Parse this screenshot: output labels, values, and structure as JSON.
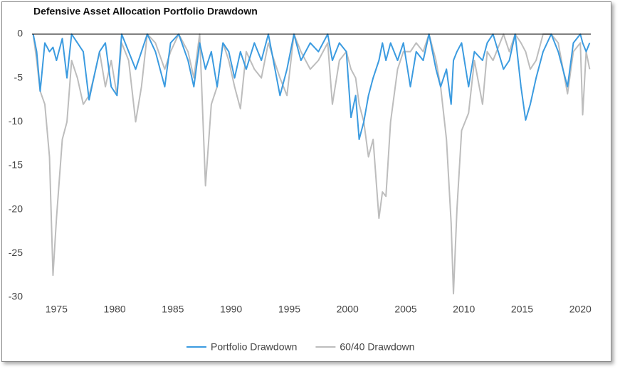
{
  "chart_data": {
    "type": "line",
    "title": "Defensive Asset Allocation Portfolio Drawdown",
    "x": [
      1973.0,
      1973.3,
      1973.6,
      1974.0,
      1974.4,
      1974.7,
      1975.0,
      1975.5,
      1975.9,
      1976.3,
      1976.8,
      1977.3,
      1977.8,
      1978.2,
      1978.7,
      1979.2,
      1979.7,
      1980.2,
      1980.6,
      1981.2,
      1981.8,
      1982.3,
      1982.8,
      1983.5,
      1984.3,
      1984.8,
      1985.5,
      1986.3,
      1986.8,
      1987.3,
      1987.8,
      1988.3,
      1988.8,
      1989.3,
      1989.8,
      1990.3,
      1990.8,
      1991.3,
      1992.0,
      1992.6,
      1993.2,
      1994.2,
      1994.8,
      1995.4,
      1996.0,
      1996.8,
      1997.5,
      1998.3,
      1998.7,
      1999.3,
      1999.9,
      2000.3,
      2000.7,
      2001.0,
      2001.4,
      2001.8,
      2002.2,
      2002.7,
      2003.0,
      2003.3,
      2003.7,
      2004.3,
      2004.8,
      2005.4,
      2005.9,
      2006.5,
      2007.0,
      2007.6,
      2008.0,
      2008.5,
      2008.9,
      2009.1,
      2009.4,
      2009.8,
      2010.4,
      2010.9,
      2011.6,
      2012.0,
      2012.5,
      2013.4,
      2013.9,
      2014.4,
      2014.9,
      2015.3,
      2015.7,
      2016.2,
      2016.8,
      2017.5,
      2018.1,
      2018.9,
      2019.4,
      2020.0,
      2020.2,
      2020.5,
      2020.8
    ],
    "series": [
      {
        "name": "Portfolio Drawdown",
        "color": "#3b9be0",
        "values": [
          0,
          -2,
          -6.5,
          -1,
          -2,
          -1.5,
          -3,
          -0.5,
          -5,
          0,
          -1,
          -2,
          -7.5,
          -5,
          -2,
          -1,
          -6,
          -7,
          0,
          -2,
          -4,
          -2,
          0,
          -2,
          -6,
          -1,
          0,
          -3,
          -6,
          -1,
          -4,
          -2,
          -6,
          -1,
          -2,
          -5,
          -2,
          -4,
          -1,
          -3,
          0,
          -7,
          -4,
          0,
          -3,
          -1,
          -2,
          0,
          -3,
          -1,
          -2,
          -9.5,
          -7,
          -12,
          -10,
          -7,
          -5,
          -3,
          -1,
          -3,
          -1,
          -3,
          -1,
          -6,
          -2,
          -3,
          0,
          -4,
          -6,
          -4,
          -8,
          -3,
          -2,
          -1,
          -6,
          -2,
          -3,
          -1,
          0,
          -4,
          -3,
          0,
          -6,
          -9.8,
          -8,
          -5,
          -2,
          0,
          -2,
          -6,
          -1,
          0,
          -1,
          -2,
          -1
        ]
      },
      {
        "name": "60/40 Drawdown",
        "color": "#bdbdbd",
        "values": [
          0,
          -3,
          -6.5,
          -8,
          -14,
          -27.5,
          -21,
          -12,
          -10,
          -3,
          -5,
          -8,
          -7,
          -5,
          -2,
          -6,
          -3,
          -7,
          -1,
          -3,
          -10,
          -6,
          0,
          -1,
          -4,
          -2,
          0,
          -2,
          -5,
          0,
          -17.3,
          -8,
          -6,
          -1,
          -3,
          -6,
          -8.5,
          -2,
          -4,
          -5,
          -1,
          -5,
          -7,
          0,
          -2,
          -4,
          -3,
          -1,
          -8,
          -3,
          -2,
          -4,
          -5,
          -8,
          -10,
          -14,
          -12,
          -21,
          -18,
          -18.5,
          -10,
          -4,
          -2,
          -2,
          -1,
          -2,
          0,
          -3,
          -6,
          -12,
          -21.5,
          -29.6,
          -20,
          -11,
          -9,
          -3,
          -8,
          -2,
          -3,
          0,
          -2,
          0,
          -1,
          -2,
          -4,
          -3,
          0,
          0,
          -1,
          -6.8,
          -2,
          -1,
          -9.2,
          -2,
          -4
        ]
      }
    ],
    "xlim": [
      1972.9,
      2020.9
    ],
    "ylim": [
      -30,
      0
    ],
    "xticks": [
      1975,
      1980,
      1985,
      1990,
      1995,
      2000,
      2005,
      2010,
      2015,
      2020
    ],
    "yticks": [
      0,
      -5,
      -10,
      -15,
      -20,
      -25,
      -30
    ]
  }
}
